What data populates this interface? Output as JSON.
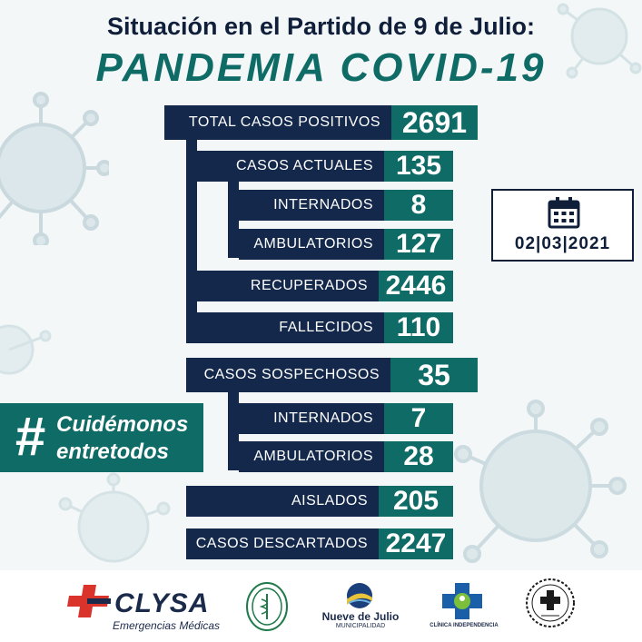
{
  "header": {
    "subtitle": "Situación en el Partido de 9 de Julio:",
    "title": "PANDEMIA COVID-19"
  },
  "stats": {
    "total_positivos": {
      "label": "TOTAL CASOS POSITIVOS",
      "value": "2691"
    },
    "casos_actuales": {
      "label": "CASOS ACTUALES",
      "value": "135"
    },
    "internados": {
      "label": "INTERNADOS",
      "value": "8"
    },
    "ambulatorios": {
      "label": "AMBULATORIOS",
      "value": "127"
    },
    "recuperados": {
      "label": "RECUPERADOS",
      "value": "2446"
    },
    "fallecidos": {
      "label": "FALLECIDOS",
      "value": "110"
    },
    "casos_sospechosos": {
      "label": "CASOS SOSPECHOSOS",
      "value": "35"
    },
    "sosp_internados": {
      "label": "INTERNADOS",
      "value": "7"
    },
    "sosp_ambulatorios": {
      "label": "AMBULATORIOS",
      "value": "28"
    },
    "aislados": {
      "label": "AISLADOS",
      "value": "205"
    },
    "descartados": {
      "label": "CASOS DESCARTADOS",
      "value": "2247"
    }
  },
  "date": {
    "icon": "calendar-icon",
    "text": "02|03|2021"
  },
  "hashtag": {
    "symbol": "#",
    "line1": "Cuidémonos",
    "line2": "entretodos"
  },
  "logos": {
    "clysa": {
      "name": "CLYSA",
      "subtitle": "Emergencias Médicas"
    },
    "nueve_de_julio": {
      "name": "Nueve de Julio",
      "subtitle": "MUNICIPALIDAD"
    },
    "clinica": {
      "name": "CLÍNICA INDEPENDENCIA"
    }
  },
  "colors": {
    "navy": "#13284a",
    "teal": "#0f6b66",
    "background": "#f4f7f8"
  }
}
